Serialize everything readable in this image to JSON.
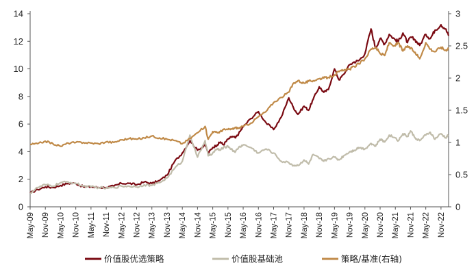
{
  "chart_data": {
    "type": "line",
    "title": "",
    "xlabel": "",
    "ylabel": "",
    "y_left": {
      "ylim": [
        0,
        14
      ],
      "ticks": [
        0,
        2,
        4,
        6,
        8,
        10,
        12,
        14
      ]
    },
    "y_right": {
      "ylim": [
        0,
        3
      ],
      "ticks": [
        "0",
        "0.5",
        "1",
        "1.5",
        "2",
        "2.5",
        "3"
      ]
    },
    "grid": false,
    "legend_position": "bottom",
    "x_ticks": [
      "May-09",
      "Nov-09",
      "May-10",
      "Nov-10",
      "May-11",
      "Nov-11",
      "May-12",
      "Nov-12",
      "May-13",
      "Nov-13",
      "May-14",
      "Nov-14",
      "May-15",
      "Nov-15",
      "May-16",
      "Nov-16",
      "May-17",
      "Nov-17",
      "May-18",
      "Nov-18",
      "May-19",
      "Nov-19",
      "May-20",
      "Nov-20",
      "May-21",
      "Nov-21",
      "May-22",
      "Nov-22"
    ],
    "series": [
      {
        "name": "价值股优选策略",
        "axis": "left",
        "color": "#7a0a12",
        "x": [
          0,
          0.5,
          1,
          1.5,
          2,
          2.5,
          3,
          3.5,
          4,
          4.5,
          5,
          5.5,
          6,
          6.5,
          7,
          7.5,
          8,
          8.5,
          9,
          9.5,
          10,
          10.5,
          11,
          11.5,
          11.7,
          12,
          12.3,
          12.5,
          12.7,
          13,
          13.3,
          13.5,
          13.7,
          14,
          14.5,
          15,
          15.5,
          16,
          16.5,
          17,
          17.3,
          17.6,
          18,
          18.3,
          18.6,
          19,
          19.3,
          19.6,
          20,
          20.3,
          20.6,
          21,
          21.3,
          21.6,
          22,
          22.4,
          22.7,
          23,
          23.3,
          23.6,
          24,
          24.2,
          24.5,
          24.8,
          25,
          25.3,
          25.6,
          26,
          26.3,
          26.6,
          27,
          27.3,
          27.5
        ],
        "values": [
          1.0,
          1.25,
          1.45,
          1.4,
          1.55,
          1.7,
          1.7,
          1.45,
          1.45,
          1.4,
          1.4,
          1.5,
          1.7,
          1.7,
          1.6,
          1.8,
          1.7,
          1.9,
          2.3,
          3.3,
          3.9,
          4.8,
          4.1,
          4.5,
          3.9,
          4.3,
          4.5,
          4.7,
          4.5,
          4.9,
          5.1,
          5.0,
          5.3,
          5.8,
          6.4,
          6.9,
          6.1,
          5.6,
          6.5,
          7.9,
          7.2,
          6.7,
          7.3,
          7.0,
          7.8,
          8.7,
          8.3,
          8.5,
          10.0,
          9.2,
          9.6,
          10.3,
          10.5,
          10.6,
          11.1,
          12.9,
          11.5,
          12.2,
          11.8,
          12.5,
          12.1,
          12.0,
          12.6,
          11.9,
          12.3,
          12.1,
          11.7,
          12.5,
          12.2,
          12.8,
          13.2,
          12.9,
          12.4
        ],
        "label_markers": []
      },
      {
        "name": "价值股基础池",
        "axis": "left",
        "color": "#c0bcaa",
        "x": [
          0,
          0.5,
          1,
          1.5,
          2,
          2.5,
          3,
          3.5,
          4,
          4.5,
          5,
          5.5,
          6,
          6.5,
          7,
          7.5,
          8,
          8.5,
          9,
          9.5,
          10,
          10.5,
          11,
          11.5,
          11.7,
          12,
          12.3,
          12.5,
          12.7,
          13,
          13.3,
          13.5,
          13.7,
          14,
          14.5,
          15,
          15.5,
          16,
          16.5,
          17,
          17.3,
          17.6,
          18,
          18.3,
          18.6,
          19,
          19.3,
          19.6,
          20,
          20.3,
          20.6,
          21,
          21.3,
          21.6,
          22,
          22.4,
          22.7,
          23,
          23.3,
          23.6,
          24,
          24.2,
          24.5,
          24.8,
          25,
          25.3,
          25.6,
          26,
          26.3,
          26.6,
          27,
          27.3,
          27.5
        ],
        "values": [
          1.0,
          1.4,
          1.6,
          1.5,
          1.75,
          1.8,
          1.7,
          1.5,
          1.45,
          1.4,
          1.35,
          1.4,
          1.5,
          1.5,
          1.45,
          1.6,
          1.55,
          1.75,
          2.1,
          2.8,
          3.3,
          5.2,
          3.6,
          4.8,
          3.7,
          3.9,
          4.2,
          4.1,
          4.3,
          4.4,
          4.1,
          4.0,
          4.3,
          4.5,
          4.3,
          3.9,
          4.2,
          3.9,
          3.3,
          3.2,
          3.0,
          3.0,
          3.4,
          3.1,
          3.8,
          3.5,
          3.3,
          3.5,
          3.6,
          3.4,
          3.7,
          4.0,
          4.1,
          4.3,
          4.2,
          4.6,
          4.4,
          4.9,
          4.7,
          5.2,
          5.0,
          4.8,
          5.3,
          5.1,
          5.5,
          5.0,
          4.8,
          5.2,
          5.4,
          4.9,
          5.3,
          5.0,
          5.2
        ],
        "label_markers": []
      },
      {
        "name": "策略/基准(右轴)",
        "axis": "right",
        "color": "#c08a48",
        "x": [
          0,
          0.5,
          1,
          1.5,
          2,
          2.5,
          3,
          3.5,
          4,
          4.5,
          5,
          5.5,
          6,
          6.5,
          7,
          7.5,
          8,
          8.5,
          9,
          9.5,
          10,
          10.5,
          11,
          11.5,
          11.7,
          12,
          12.3,
          12.5,
          12.7,
          13,
          13.3,
          13.5,
          13.7,
          14,
          14.5,
          15,
          15.5,
          16,
          16.5,
          17,
          17.3,
          17.6,
          18,
          18.3,
          18.6,
          19,
          19.3,
          19.6,
          20,
          20.3,
          20.6,
          21,
          21.3,
          21.6,
          22,
          22.4,
          22.7,
          23,
          23.3,
          23.6,
          24,
          24.2,
          24.5,
          24.8,
          25,
          25.3,
          25.6,
          26,
          26.3,
          26.6,
          27,
          27.3,
          27.5
        ],
        "values": [
          0.97,
          0.98,
          1.02,
          0.98,
          0.94,
          0.99,
          1.0,
          1.0,
          0.99,
          0.98,
          1.01,
          1.0,
          1.04,
          1.06,
          1.05,
          1.07,
          1.1,
          1.07,
          1.05,
          1.03,
          0.98,
          1.06,
          1.15,
          1.25,
          1.05,
          1.17,
          1.15,
          1.17,
          1.2,
          1.2,
          1.21,
          1.23,
          1.22,
          1.25,
          1.3,
          1.4,
          1.48,
          1.62,
          1.7,
          1.78,
          1.92,
          1.96,
          1.92,
          1.95,
          1.96,
          1.99,
          2.0,
          2.01,
          2.05,
          2.1,
          2.12,
          2.14,
          2.18,
          2.22,
          2.3,
          2.45,
          2.48,
          2.38,
          2.35,
          2.55,
          2.5,
          2.55,
          2.42,
          2.5,
          2.46,
          2.4,
          2.3,
          2.55,
          2.45,
          2.41,
          2.48,
          2.43,
          2.47
        ],
        "label_markers": []
      }
    ]
  }
}
